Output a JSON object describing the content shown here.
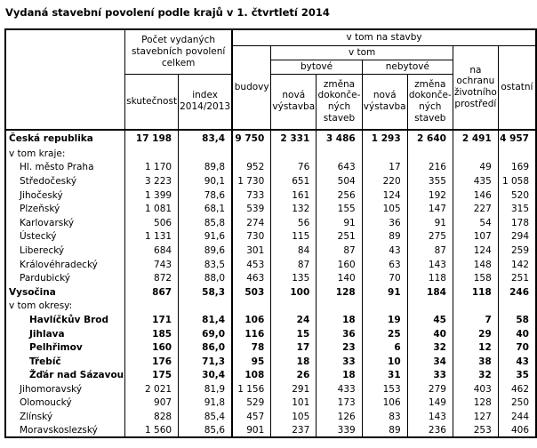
{
  "title": "Vydaná stavební povolení podle krajů v 1. čtvrtletí 2014",
  "table": {
    "header": {
      "corner": "",
      "total_group": "Počet vydaných\nstavebních povolení\ncelkem",
      "v_tom_na_stavby": "v tom na stavby",
      "v_tom": "v tom",
      "bytove": "bytové",
      "nebytove": "nebytové",
      "budovy": "budovy",
      "skutecnost": "skutečnost",
      "index": "index\n2014/2013",
      "nova_vystavba_bytove": "nová\nvýstavba",
      "zmena_bytove": "změna\ndokonče-\nných\nstaveb",
      "nova_vystavba_nebytove": "nová\nvýstavba",
      "zmena_nebytove": "změna\ndokonče-\nných\nstaveb",
      "ochrana": "na\nochranu\nživotního\nprostředí",
      "ostatni": "ostatní"
    },
    "column_keys": [
      "skutecnost",
      "index",
      "budovy",
      "bytove-nova",
      "bytove-zmena",
      "nebytove-nova",
      "nebytove-zmena",
      "ochrana",
      "ostatni"
    ],
    "rows": [
      {
        "label": "Česká republika",
        "style": "total",
        "values": [
          "17 198",
          "83,4",
          "9 750",
          "2 331",
          "3 486",
          "1 293",
          "2 640",
          "2 491",
          "4 957"
        ]
      },
      {
        "label": "v tom kraje:",
        "style": "section",
        "values": [
          "",
          "",
          "",
          "",
          "",
          "",
          "",
          "",
          ""
        ]
      },
      {
        "label": "Hl. město Praha",
        "style": "kraj",
        "values": [
          "1 170",
          "89,8",
          "952",
          "76",
          "643",
          "17",
          "216",
          "49",
          "169"
        ]
      },
      {
        "label": "Středočeský",
        "style": "kraj",
        "values": [
          "3 223",
          "90,1",
          "1 730",
          "651",
          "504",
          "220",
          "355",
          "435",
          "1 058"
        ]
      },
      {
        "label": "Jihočeský",
        "style": "kraj",
        "values": [
          "1 399",
          "78,6",
          "733",
          "161",
          "256",
          "124",
          "192",
          "146",
          "520"
        ]
      },
      {
        "label": "Plzeňský",
        "style": "kraj",
        "values": [
          "1 081",
          "68,1",
          "539",
          "132",
          "155",
          "105",
          "147",
          "227",
          "315"
        ]
      },
      {
        "label": "Karlovarský",
        "style": "kraj",
        "values": [
          "506",
          "85,8",
          "274",
          "56",
          "91",
          "36",
          "91",
          "54",
          "178"
        ]
      },
      {
        "label": "Ústecký",
        "style": "kraj",
        "values": [
          "1 131",
          "91,6",
          "730",
          "115",
          "251",
          "89",
          "275",
          "107",
          "294"
        ]
      },
      {
        "label": "Liberecký",
        "style": "kraj",
        "values": [
          "684",
          "89,6",
          "301",
          "84",
          "87",
          "43",
          "87",
          "124",
          "259"
        ]
      },
      {
        "label": "Královéhradecký",
        "style": "kraj",
        "values": [
          "743",
          "83,5",
          "453",
          "87",
          "160",
          "63",
          "143",
          "148",
          "142"
        ]
      },
      {
        "label": "Pardubický",
        "style": "kraj",
        "values": [
          "872",
          "88,0",
          "463",
          "135",
          "140",
          "70",
          "118",
          "158",
          "251"
        ]
      },
      {
        "label": "Vysočina",
        "style": "kraj-bold",
        "values": [
          "867",
          "58,3",
          "503",
          "100",
          "128",
          "91",
          "184",
          "118",
          "246"
        ]
      },
      {
        "label": "v tom okresy:",
        "style": "section",
        "values": [
          "",
          "",
          "",
          "",
          "",
          "",
          "",
          "",
          ""
        ]
      },
      {
        "label": "Havlíčkův Brod",
        "style": "okres",
        "values": [
          "171",
          "81,4",
          "106",
          "24",
          "18",
          "19",
          "45",
          "7",
          "58"
        ]
      },
      {
        "label": "Jihlava",
        "style": "okres",
        "values": [
          "185",
          "69,0",
          "116",
          "15",
          "36",
          "25",
          "40",
          "29",
          "40"
        ]
      },
      {
        "label": "Pelhřimov",
        "style": "okres",
        "values": [
          "160",
          "86,0",
          "78",
          "17",
          "23",
          "6",
          "32",
          "12",
          "70"
        ]
      },
      {
        "label": "Třebíč",
        "style": "okres",
        "values": [
          "176",
          "71,3",
          "95",
          "18",
          "33",
          "10",
          "34",
          "38",
          "43"
        ]
      },
      {
        "label": "Žďár nad Sázavou",
        "style": "okres",
        "values": [
          "175",
          "30,4",
          "108",
          "26",
          "18",
          "31",
          "33",
          "32",
          "35"
        ]
      },
      {
        "label": "Jihomoravský",
        "style": "kraj",
        "values": [
          "2 021",
          "81,9",
          "1 156",
          "291",
          "433",
          "153",
          "279",
          "403",
          "462"
        ]
      },
      {
        "label": "Olomoucký",
        "style": "kraj",
        "values": [
          "907",
          "91,8",
          "529",
          "101",
          "173",
          "106",
          "149",
          "128",
          "250"
        ]
      },
      {
        "label": "Zlínský",
        "style": "kraj",
        "values": [
          "828",
          "85,4",
          "457",
          "105",
          "126",
          "83",
          "143",
          "127",
          "244"
        ]
      },
      {
        "label": "Moravskoslezský",
        "style": "kraj",
        "values": [
          "1 560",
          "85,6",
          "901",
          "237",
          "339",
          "89",
          "236",
          "253",
          "406"
        ]
      }
    ]
  }
}
